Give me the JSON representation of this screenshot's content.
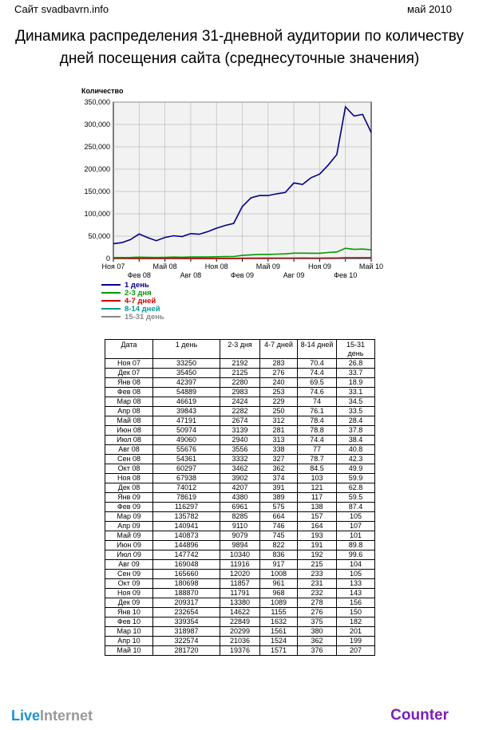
{
  "header": {
    "site": "Сайт svadbavrn.info",
    "period": "май 2010"
  },
  "title_line1": "Динамика распределения 31-дневной аудитории по количеству",
  "title_line2": "дней посещения сайта (среднесуточные значения)",
  "chart_data": {
    "type": "line",
    "ylabel": "Количество",
    "ylim": [
      0,
      350000
    ],
    "yticks": [
      "0",
      "50,000",
      "100,000",
      "150,000",
      "200,000",
      "250,000",
      "300,000",
      "350,000"
    ],
    "x_top_labels": [
      "Ноя 07",
      "Май 08",
      "Ноя 08",
      "Май 09",
      "Ноя 09",
      "Май 10"
    ],
    "x_bottom_labels": [
      "Фев 08",
      "Авг 08",
      "Фев 09",
      "Авг 09",
      "Фев 10"
    ],
    "categories": [
      "Ноя 07",
      "Дек 07",
      "Янв 08",
      "Фев 08",
      "Мар 08",
      "Апр 08",
      "Май 08",
      "Июн 08",
      "Июл 08",
      "Авг 08",
      "Сен 08",
      "Окт 08",
      "Ноя 08",
      "Дек 08",
      "Янв 09",
      "Фев 09",
      "Мар 09",
      "Апр 09",
      "Май 09",
      "Июн 09",
      "Июл 09",
      "Авг 09",
      "Сен 09",
      "Окт 09",
      "Ноя 09",
      "Дек 09",
      "Янв 10",
      "Фев 10",
      "Мар 10",
      "Апр 10",
      "Май 10"
    ],
    "grid": true,
    "series": [
      {
        "name": "1 день",
        "color": "#00008b",
        "values": [
          33250,
          35450,
          42397,
          54889,
          46619,
          39843,
          47191,
          50974,
          49060,
          55676,
          54361,
          60297,
          67938,
          74012,
          78619,
          116297,
          135782,
          140941,
          140873,
          144896,
          147742,
          169048,
          165660,
          180698,
          188870,
          209317,
          232654,
          339354,
          318987,
          322574,
          281720
        ]
      },
      {
        "name": "2-3 дня",
        "color": "#009900",
        "values": [
          2192,
          2125,
          2280,
          2983,
          2424,
          2282,
          2674,
          3139,
          2940,
          3556,
          3332,
          3462,
          3902,
          4207,
          4380,
          6961,
          8285,
          9110,
          9079,
          9894,
          10340,
          11916,
          12020,
          11857,
          11791,
          13380,
          14622,
          22849,
          20299,
          21036,
          19376
        ]
      },
      {
        "name": "4-7 дней",
        "color": "#cc0000",
        "values": [
          283,
          276,
          240,
          253,
          229,
          250,
          312,
          281,
          313,
          338,
          327,
          362,
          374,
          391,
          389,
          575,
          664,
          746,
          745,
          822,
          836,
          917,
          1008,
          961,
          968,
          1089,
          1155,
          1632,
          1561,
          1524,
          1571
        ]
      },
      {
        "name": "8-14 дней",
        "color": "#009999",
        "values": [
          70.4,
          74.4,
          69.5,
          74.6,
          74,
          76.1,
          78.4,
          78.8,
          74.4,
          77,
          78.7,
          84.5,
          103,
          121,
          117,
          138,
          157,
          164,
          193,
          191,
          192,
          215,
          233,
          231,
          232,
          278,
          276,
          375,
          380,
          362,
          376
        ]
      },
      {
        "name": "15-31 день",
        "color": "#888888",
        "values": [
          26.8,
          33.7,
          18.9,
          33.1,
          34.5,
          33.5,
          28.4,
          37.8,
          38.4,
          40.8,
          42.3,
          49.9,
          59.9,
          62.8,
          59.5,
          87.4,
          105,
          107,
          101,
          89.8,
          99.6,
          104,
          105,
          133,
          143,
          156,
          150,
          182,
          201,
          199,
          207
        ]
      }
    ]
  },
  "table": {
    "headers": [
      "Дата",
      "1 день",
      "2-3 дня",
      "4-7 дней",
      "8-14 дней",
      "15-31 день"
    ],
    "rows": [
      [
        "Ноя 07",
        "33250",
        "2192",
        "283",
        "70.4",
        "26.8"
      ],
      [
        "Дек 07",
        "35450",
        "2125",
        "276",
        "74.4",
        "33.7"
      ],
      [
        "Янв 08",
        "42397",
        "2280",
        "240",
        "69.5",
        "18.9"
      ],
      [
        "Фев 08",
        "54889",
        "2983",
        "253",
        "74.6",
        "33.1"
      ],
      [
        "Мар 08",
        "46619",
        "2424",
        "229",
        "74",
        "34.5"
      ],
      [
        "Апр 08",
        "39843",
        "2282",
        "250",
        "76.1",
        "33.5"
      ],
      [
        "Май 08",
        "47191",
        "2674",
        "312",
        "78.4",
        "28.4"
      ],
      [
        "Июн 08",
        "50974",
        "3139",
        "281",
        "78.8",
        "37.8"
      ],
      [
        "Июл 08",
        "49060",
        "2940",
        "313",
        "74.4",
        "38.4"
      ],
      [
        "Авг 08",
        "55676",
        "3556",
        "338",
        "77",
        "40.8"
      ],
      [
        "Сен 08",
        "54361",
        "3332",
        "327",
        "78.7",
        "42.3"
      ],
      [
        "Окт 08",
        "60297",
        "3462",
        "362",
        "84.5",
        "49.9"
      ],
      [
        "Ноя 08",
        "67938",
        "3902",
        "374",
        "103",
        "59.9"
      ],
      [
        "Дек 08",
        "74012",
        "4207",
        "391",
        "121",
        "62.8"
      ],
      [
        "Янв 09",
        "78619",
        "4380",
        "389",
        "117",
        "59.5"
      ],
      [
        "Фев 09",
        "116297",
        "6961",
        "575",
        "138",
        "87.4"
      ],
      [
        "Мар 09",
        "135782",
        "8285",
        "664",
        "157",
        "105"
      ],
      [
        "Апр 09",
        "140941",
        "9110",
        "746",
        "164",
        "107"
      ],
      [
        "Май 09",
        "140873",
        "9079",
        "745",
        "193",
        "101"
      ],
      [
        "Июн 09",
        "144896",
        "9894",
        "822",
        "191",
        "89.8"
      ],
      [
        "Июл 09",
        "147742",
        "10340",
        "836",
        "192",
        "99.6"
      ],
      [
        "Авг 09",
        "169048",
        "11916",
        "917",
        "215",
        "104"
      ],
      [
        "Сен 09",
        "165660",
        "12020",
        "1008",
        "233",
        "105"
      ],
      [
        "Окт 09",
        "180698",
        "11857",
        "961",
        "231",
        "133"
      ],
      [
        "Ноя 09",
        "188870",
        "11791",
        "968",
        "232",
        "143"
      ],
      [
        "Дек 09",
        "209317",
        "13380",
        "1089",
        "278",
        "156"
      ],
      [
        "Янв 10",
        "232654",
        "14622",
        "1155",
        "276",
        "150"
      ],
      [
        "Фев 10",
        "339354",
        "22849",
        "1632",
        "375",
        "182"
      ],
      [
        "Мар 10",
        "318987",
        "20299",
        "1561",
        "380",
        "201"
      ],
      [
        "Апр 10",
        "322574",
        "21036",
        "1524",
        "362",
        "199"
      ],
      [
        "Май 10",
        "281720",
        "19376",
        "1571",
        "376",
        "207"
      ]
    ]
  },
  "footer": {
    "logo_part1": "Live",
    "logo_part2": "Internet",
    "counter": "Counter"
  }
}
